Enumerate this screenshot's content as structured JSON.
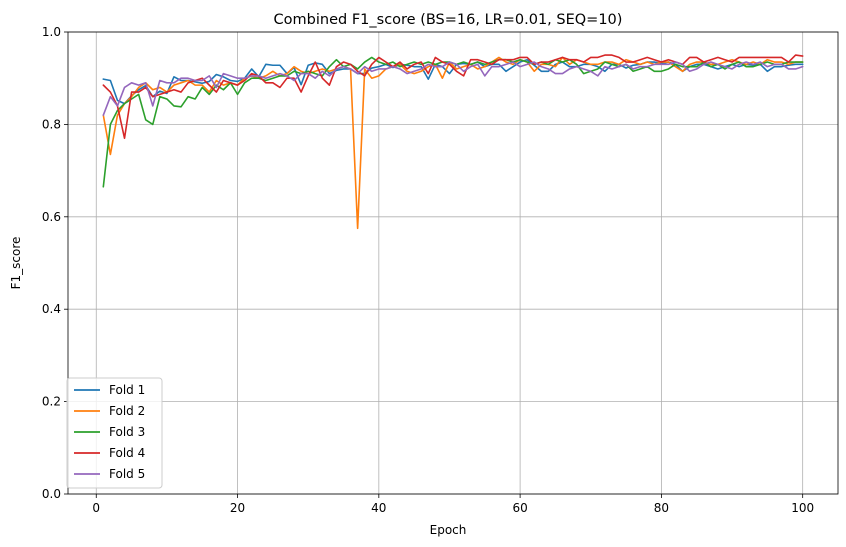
{
  "chart_data": {
    "type": "line",
    "title": "Combined F1_score (BS=16, LR=0.01, SEQ=10)",
    "xlabel": "Epoch",
    "ylabel": "F1_score",
    "xlim": [
      -4,
      105
    ],
    "ylim": [
      0.0,
      1.0
    ],
    "xticks": [
      0,
      20,
      40,
      60,
      80,
      100
    ],
    "yticks": [
      0.0,
      0.2,
      0.4,
      0.6,
      0.8,
      1.0
    ],
    "xtick_labels": [
      "0",
      "20",
      "40",
      "60",
      "80",
      "100"
    ],
    "ytick_labels": [
      "0.0",
      "0.2",
      "0.4",
      "0.6",
      "0.8",
      "1.0"
    ],
    "grid": true,
    "legend_position": "lower-left",
    "series": [
      {
        "name": "Fold 1",
        "color": "#1f77b4",
        "values": [
          0.898,
          0.895,
          0.852,
          0.845,
          0.862,
          0.875,
          0.884,
          0.86,
          0.872,
          0.867,
          0.903,
          0.895,
          0.895,
          0.892,
          0.889,
          0.893,
          0.908,
          0.903,
          0.895,
          0.893,
          0.9,
          0.92,
          0.903,
          0.93,
          0.928,
          0.928,
          0.91,
          0.923,
          0.886,
          0.928,
          0.933,
          0.93,
          0.91,
          0.917,
          0.92,
          0.92,
          0.91,
          0.91,
          0.922,
          0.925,
          0.93,
          0.923,
          0.93,
          0.928,
          0.925,
          0.925,
          0.898,
          0.93,
          0.925,
          0.91,
          0.93,
          0.932,
          0.93,
          0.935,
          0.925,
          0.93,
          0.93,
          0.915,
          0.925,
          0.935,
          0.94,
          0.928,
          0.915,
          0.915,
          0.93,
          0.935,
          0.925,
          0.925,
          0.93,
          0.93,
          0.925,
          0.915,
          0.93,
          0.93,
          0.922,
          0.928,
          0.93,
          0.935,
          0.935,
          0.932,
          0.935,
          0.93,
          0.915,
          0.925,
          0.93,
          0.93,
          0.925,
          0.92,
          0.925,
          0.93,
          0.925,
          0.93,
          0.928,
          0.93,
          0.915,
          0.925,
          0.925,
          0.928,
          0.93,
          0.93
        ]
      },
      {
        "name": "Fold 2",
        "color": "#ff7f0e",
        "values": [
          0.82,
          0.735,
          0.82,
          0.845,
          0.86,
          0.88,
          0.89,
          0.875,
          0.88,
          0.87,
          0.885,
          0.89,
          0.895,
          0.885,
          0.885,
          0.87,
          0.895,
          0.885,
          0.89,
          0.885,
          0.9,
          0.905,
          0.9,
          0.905,
          0.915,
          0.905,
          0.91,
          0.925,
          0.915,
          0.91,
          0.915,
          0.92,
          0.915,
          0.92,
          0.925,
          0.92,
          0.575,
          0.92,
          0.9,
          0.905,
          0.92,
          0.925,
          0.93,
          0.915,
          0.91,
          0.915,
          0.925,
          0.93,
          0.9,
          0.935,
          0.92,
          0.925,
          0.93,
          0.92,
          0.925,
          0.935,
          0.945,
          0.935,
          0.93,
          0.94,
          0.935,
          0.915,
          0.93,
          0.93,
          0.925,
          0.945,
          0.93,
          0.94,
          0.935,
          0.93,
          0.93,
          0.935,
          0.935,
          0.93,
          0.94,
          0.935,
          0.93,
          0.935,
          0.93,
          0.935,
          0.935,
          0.925,
          0.915,
          0.93,
          0.935,
          0.935,
          0.93,
          0.93,
          0.935,
          0.94,
          0.935,
          0.93,
          0.935,
          0.93,
          0.94,
          0.935,
          0.935,
          0.93,
          0.935,
          0.935
        ]
      },
      {
        "name": "Fold 3",
        "color": "#2ca02c",
        "values": [
          0.665,
          0.8,
          0.83,
          0.845,
          0.855,
          0.865,
          0.81,
          0.8,
          0.86,
          0.855,
          0.84,
          0.838,
          0.86,
          0.855,
          0.88,
          0.865,
          0.885,
          0.875,
          0.89,
          0.865,
          0.89,
          0.9,
          0.9,
          0.895,
          0.9,
          0.905,
          0.905,
          0.915,
          0.91,
          0.915,
          0.91,
          0.905,
          0.925,
          0.94,
          0.925,
          0.93,
          0.92,
          0.935,
          0.945,
          0.935,
          0.93,
          0.935,
          0.925,
          0.93,
          0.935,
          0.93,
          0.935,
          0.93,
          0.935,
          0.935,
          0.93,
          0.935,
          0.93,
          0.935,
          0.93,
          0.935,
          0.94,
          0.94,
          0.935,
          0.94,
          0.935,
          0.93,
          0.935,
          0.93,
          0.94,
          0.935,
          0.94,
          0.93,
          0.91,
          0.915,
          0.92,
          0.935,
          0.93,
          0.925,
          0.93,
          0.915,
          0.92,
          0.925,
          0.915,
          0.915,
          0.92,
          0.93,
          0.925,
          0.925,
          0.925,
          0.935,
          0.925,
          0.93,
          0.92,
          0.93,
          0.935,
          0.925,
          0.925,
          0.93,
          0.935,
          0.93,
          0.93,
          0.935,
          0.935,
          0.935
        ]
      },
      {
        "name": "Fold 4",
        "color": "#d62728",
        "values": [
          0.885,
          0.87,
          0.84,
          0.77,
          0.87,
          0.87,
          0.88,
          0.86,
          0.865,
          0.87,
          0.875,
          0.87,
          0.89,
          0.895,
          0.9,
          0.885,
          0.87,
          0.895,
          0.89,
          0.885,
          0.895,
          0.91,
          0.905,
          0.89,
          0.89,
          0.88,
          0.9,
          0.9,
          0.87,
          0.905,
          0.935,
          0.9,
          0.885,
          0.925,
          0.935,
          0.93,
          0.915,
          0.905,
          0.93,
          0.945,
          0.935,
          0.925,
          0.935,
          0.92,
          0.93,
          0.935,
          0.91,
          0.945,
          0.935,
          0.93,
          0.915,
          0.905,
          0.94,
          0.94,
          0.935,
          0.93,
          0.94,
          0.94,
          0.94,
          0.945,
          0.945,
          0.93,
          0.935,
          0.935,
          0.94,
          0.945,
          0.94,
          0.94,
          0.935,
          0.945,
          0.945,
          0.95,
          0.95,
          0.945,
          0.935,
          0.935,
          0.94,
          0.945,
          0.94,
          0.935,
          0.94,
          0.935,
          0.93,
          0.945,
          0.945,
          0.935,
          0.94,
          0.945,
          0.94,
          0.935,
          0.945,
          0.945,
          0.945,
          0.945,
          0.945,
          0.945,
          0.945,
          0.935,
          0.95,
          0.948
        ]
      },
      {
        "name": "Fold 5",
        "color": "#9467bd",
        "values": [
          0.82,
          0.86,
          0.84,
          0.88,
          0.89,
          0.885,
          0.89,
          0.84,
          0.895,
          0.89,
          0.89,
          0.9,
          0.9,
          0.895,
          0.895,
          0.905,
          0.88,
          0.91,
          0.905,
          0.9,
          0.9,
          0.905,
          0.905,
          0.9,
          0.905,
          0.91,
          0.905,
          0.895,
          0.91,
          0.91,
          0.9,
          0.915,
          0.905,
          0.92,
          0.925,
          0.92,
          0.91,
          0.925,
          0.915,
          0.92,
          0.92,
          0.925,
          0.92,
          0.91,
          0.915,
          0.92,
          0.93,
          0.925,
          0.925,
          0.935,
          0.93,
          0.915,
          0.925,
          0.93,
          0.905,
          0.925,
          0.925,
          0.93,
          0.935,
          0.925,
          0.93,
          0.935,
          0.925,
          0.92,
          0.91,
          0.91,
          0.92,
          0.925,
          0.92,
          0.915,
          0.905,
          0.925,
          0.92,
          0.925,
          0.93,
          0.92,
          0.925,
          0.925,
          0.93,
          0.93,
          0.93,
          0.935,
          0.93,
          0.915,
          0.92,
          0.93,
          0.935,
          0.93,
          0.925,
          0.92,
          0.93,
          0.935,
          0.93,
          0.935,
          0.925,
          0.93,
          0.93,
          0.92,
          0.92,
          0.925
        ]
      }
    ]
  }
}
